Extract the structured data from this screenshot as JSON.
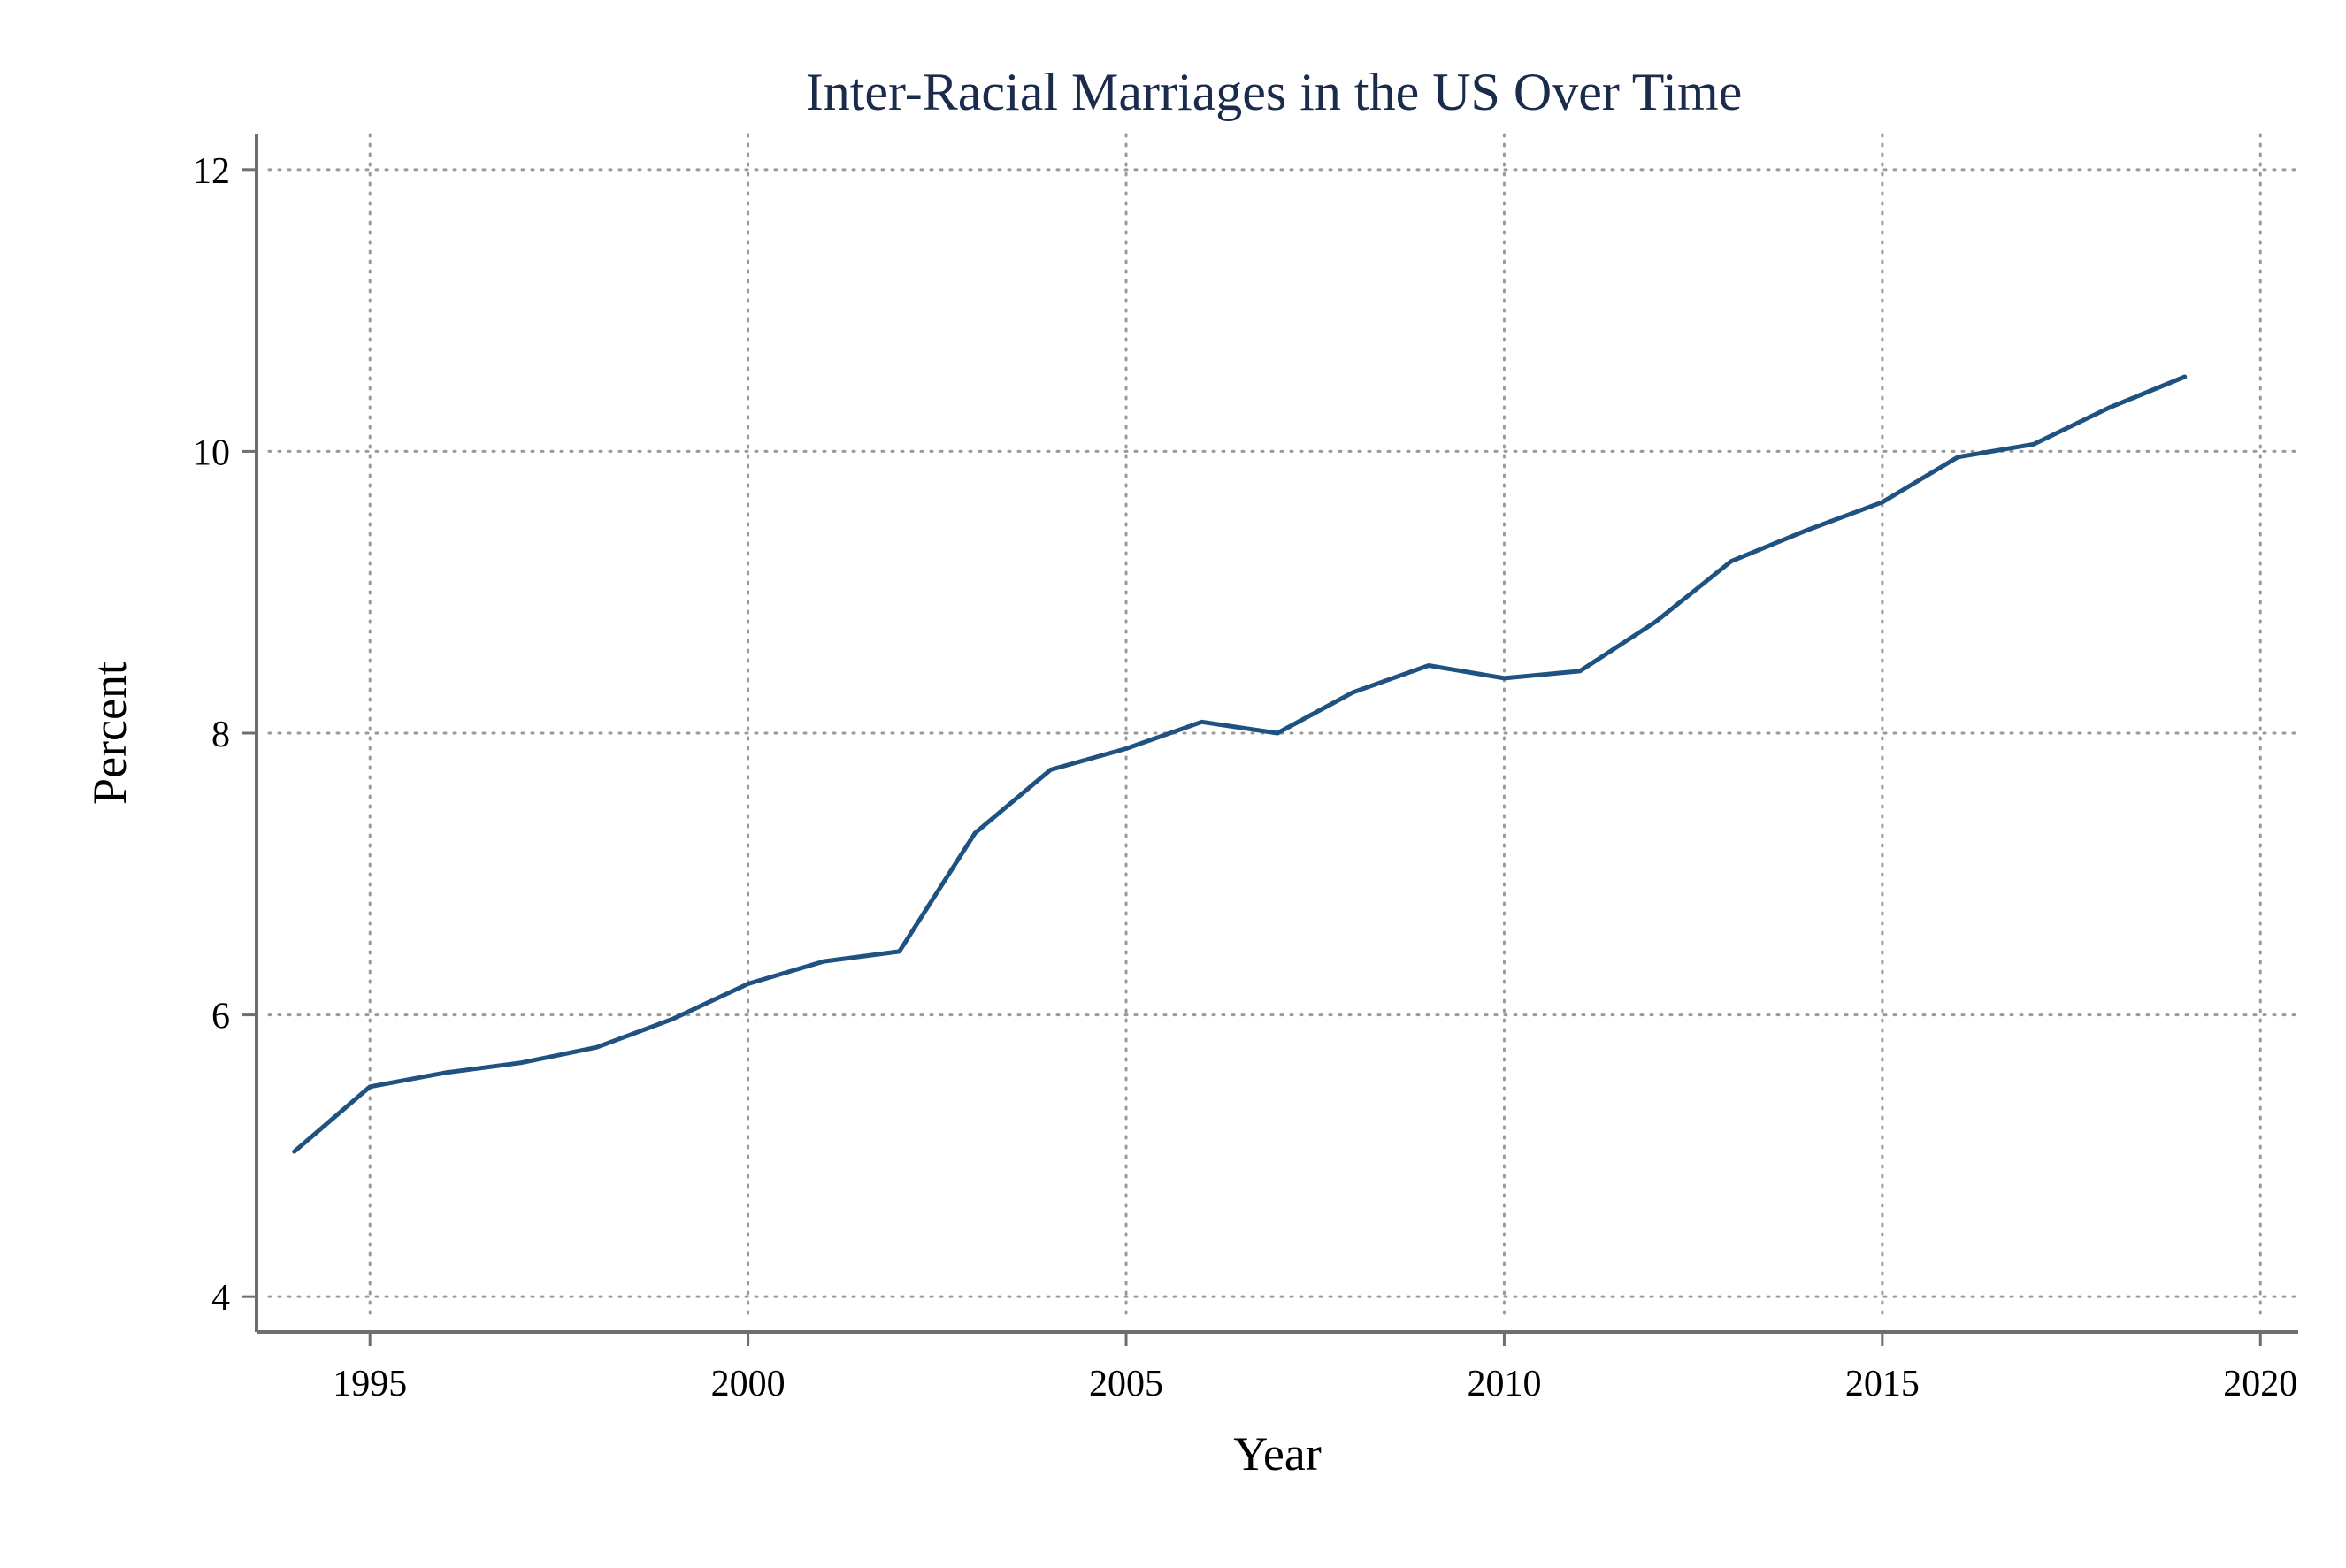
{
  "colors": {
    "title": "#1a2b4c",
    "series": "#1f5281",
    "axis": "#6e6e6e",
    "grid": "#9a9a9a",
    "background": "#ffffff"
  },
  "chart_data": {
    "type": "line",
    "title": "Inter-Racial Marriages in the US Over Time",
    "xlabel": "Year",
    "ylabel": "Percent",
    "xlim": [
      1993.5,
      2020.5
    ],
    "ylim": [
      3.75,
      12.25
    ],
    "xticks": [
      1995,
      2000,
      2005,
      2010,
      2015,
      2020
    ],
    "yticks": [
      4,
      6,
      8,
      10,
      12
    ],
    "grid": true,
    "legend": "none",
    "series": [
      {
        "x": [
          1994,
          1995,
          1996,
          1997,
          1998,
          1999,
          2000,
          2001,
          2002,
          2003,
          2004,
          2005,
          2006,
          2007,
          2008,
          2009,
          2010,
          2011,
          2012,
          2013,
          2014,
          2015,
          2016,
          2017,
          2018,
          2019
        ],
        "values": [
          5.03,
          5.49,
          5.59,
          5.66,
          5.77,
          5.97,
          6.22,
          6.38,
          6.45,
          7.29,
          7.74,
          7.89,
          8.08,
          8.0,
          8.29,
          8.48,
          8.39,
          8.44,
          8.79,
          9.22,
          9.44,
          9.64,
          9.96,
          10.05,
          10.31,
          10.53
        ]
      }
    ]
  }
}
